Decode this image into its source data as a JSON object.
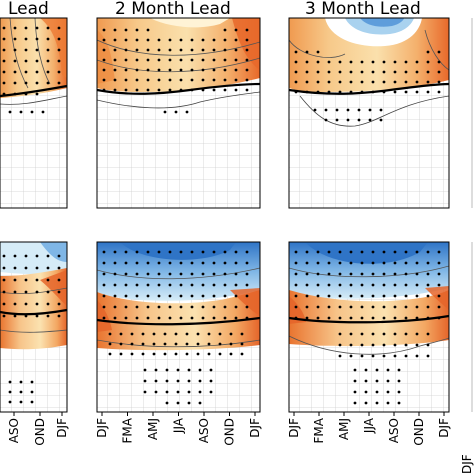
{
  "chart_data": [
    {
      "type": "heatmap",
      "title": "Lead",
      "x_tick_labels": [
        "ASO",
        "OND",
        "DJF"
      ],
      "row": "top",
      "contour_zero_line": true,
      "grid": true,
      "sign": "positive"
    },
    {
      "type": "heatmap",
      "title": "2 Month Lead",
      "x_tick_labels": [
        "DJF",
        "FMA",
        "AMJ",
        "JJA",
        "ASO",
        "OND",
        "DJF"
      ],
      "row": "top",
      "contour_zero_line": true,
      "grid": true,
      "sign": "positive"
    },
    {
      "type": "heatmap",
      "title": "3 Month Lead",
      "x_tick_labels": [
        "DJF",
        "FMA",
        "AMJ",
        "JJA",
        "ASO",
        "OND",
        "DJF"
      ],
      "row": "top",
      "contour_zero_line": true,
      "grid": true,
      "sign": "mixed"
    },
    {
      "type": "heatmap",
      "title": "",
      "x_tick_labels": [
        "ASO",
        "OND",
        "DJF"
      ],
      "row": "bottom",
      "contour_zero_line": true,
      "grid": true,
      "sign": "mixed"
    },
    {
      "type": "heatmap",
      "title": "",
      "x_tick_labels": [
        "DJF",
        "FMA",
        "AMJ",
        "JJA",
        "ASO",
        "OND",
        "DJF"
      ],
      "row": "bottom",
      "contour_zero_line": true,
      "grid": true,
      "sign": "mixed"
    },
    {
      "type": "heatmap",
      "title": "",
      "x_tick_labels": [
        "DJF",
        "FMA",
        "AMJ",
        "JJA",
        "ASO",
        "OND",
        "DJF"
      ],
      "row": "bottom",
      "contour_zero_line": true,
      "grid": true,
      "sign": "mixed"
    }
  ],
  "labels": {
    "panel1_title": "Lead",
    "panel2_title": "2 Month Lead",
    "panel3_title": "3 Month Lead",
    "cut_off_right_label": "DJF"
  },
  "colors": {
    "warm_dark": "#e8692a",
    "warm_mid": "#f4a85c",
    "warm_light": "#fbdfa6",
    "cool_dark": "#2f74c6",
    "cool_mid": "#7fb6e6",
    "cool_light": "#cfe6f5",
    "grid": "#c8c8c8",
    "contour": "#555555"
  }
}
